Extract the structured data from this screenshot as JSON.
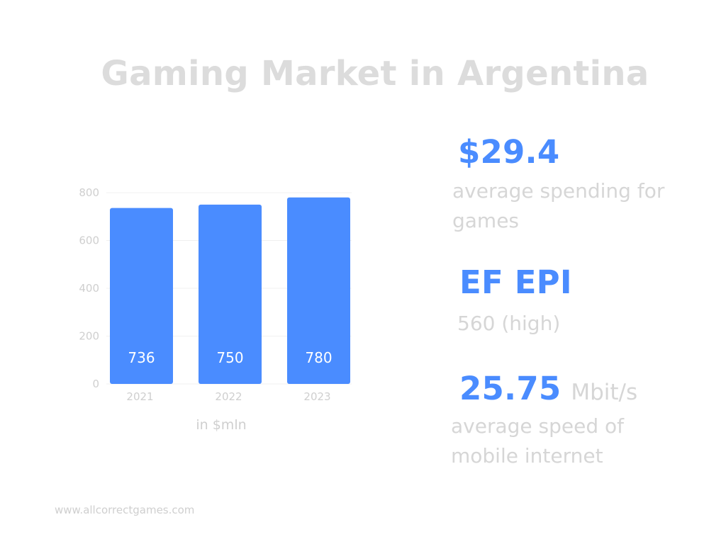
{
  "title": "Gaming Market in Argentina",
  "chart_data": {
    "type": "bar",
    "categories": [
      "2021",
      "2022",
      "2023"
    ],
    "values": [
      736,
      750,
      780
    ],
    "data_labels": [
      "736",
      "750",
      "780"
    ],
    "yticks": [
      "0",
      "200",
      "400",
      "600",
      "800"
    ],
    "ylim": [
      0,
      800
    ],
    "unit_label": "in $mln",
    "grid": true,
    "bar_color": "#4a8cff"
  },
  "stats": {
    "spending": {
      "value": "$29.4",
      "label_line1": "average spending for",
      "label_line2": "games"
    },
    "epi": {
      "value": "EF EPI",
      "label": "560 (high)"
    },
    "internet": {
      "value": "25.75",
      "unit": "Mbit/s",
      "label_line1": "average speed of",
      "label_line2": "mobile internet"
    }
  },
  "footer": "www.allcorrectgames.com",
  "colors": {
    "accent": "#4a8cff",
    "muted_text": "#d6d6d6"
  }
}
